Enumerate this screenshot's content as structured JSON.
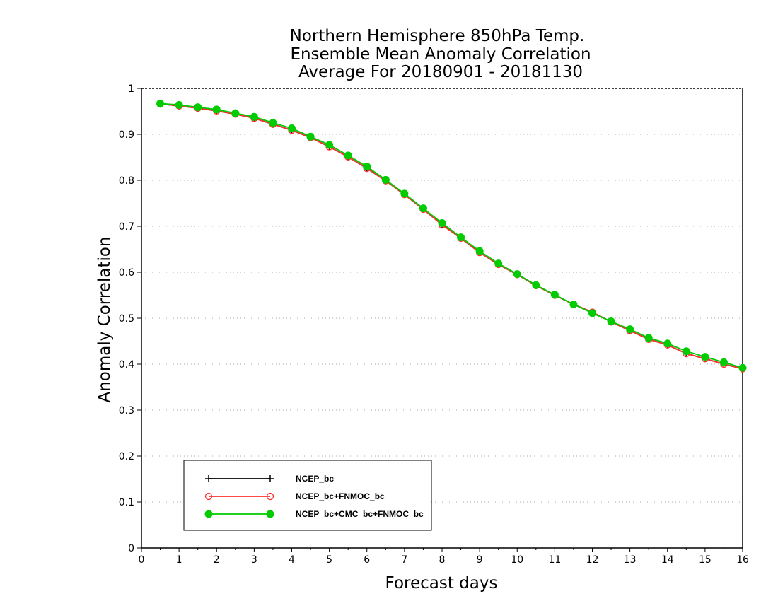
{
  "chart_data": {
    "type": "line",
    "title": [
      "Northern Hemisphere 850hPa Temp.",
      "Ensemble Mean Anomaly Correlation",
      "Average For 20180901 - 20181130"
    ],
    "xlabel": "Forecast days",
    "ylabel": "Anomaly Correlation",
    "xlim": [
      0,
      16
    ],
    "ylim": [
      0,
      1
    ],
    "xticks": [
      "0",
      "1",
      "2",
      "3",
      "4",
      "5",
      "6",
      "7",
      "8",
      "9",
      "10",
      "11",
      "12",
      "13",
      "14",
      "15",
      "16"
    ],
    "yticks": [
      "0",
      "0.1",
      "0.2",
      "0.3",
      "0.4",
      "0.5",
      "0.6",
      "0.7",
      "0.8",
      "0.9",
      "1"
    ],
    "grid": "horizontal dotted",
    "legend_position": "bottom-left",
    "x": [
      0.5,
      1,
      1.5,
      2,
      2.5,
      3,
      3.5,
      4,
      4.5,
      5,
      5.5,
      6,
      6.5,
      7,
      7.5,
      8,
      8.5,
      9,
      9.5,
      10,
      10.5,
      11,
      11.5,
      12,
      12.5,
      13,
      13.5,
      14,
      14.5,
      15,
      15.5,
      16
    ],
    "series": [
      {
        "name": "NCEP_bc",
        "color": "#000000",
        "marker": "plus",
        "values": [
          0.966,
          0.962,
          0.957,
          0.951,
          0.944,
          0.935,
          0.922,
          0.909,
          0.893,
          0.873,
          0.851,
          0.826,
          0.799,
          0.769,
          0.737,
          0.704,
          0.674,
          0.643,
          0.617,
          0.595,
          0.571,
          0.55,
          0.53,
          0.513,
          0.492,
          0.473,
          0.454,
          0.442,
          0.423,
          0.412,
          0.4,
          0.39
        ]
      },
      {
        "name": "NCEP_bc+FNMOC_bc",
        "color": "#ff3030",
        "marker": "open-circle",
        "values": [
          0.966,
          0.962,
          0.957,
          0.951,
          0.944,
          0.935,
          0.922,
          0.909,
          0.893,
          0.873,
          0.851,
          0.826,
          0.799,
          0.769,
          0.737,
          0.703,
          0.674,
          0.643,
          0.617,
          0.595,
          0.571,
          0.55,
          0.53,
          0.513,
          0.492,
          0.473,
          0.454,
          0.442,
          0.423,
          0.412,
          0.4,
          0.39
        ]
      },
      {
        "name": "NCEP_bc+CMC_bc+FNMOC_bc",
        "color": "#00cc00",
        "marker": "filled-circle",
        "values": [
          0.967,
          0.964,
          0.959,
          0.954,
          0.946,
          0.938,
          0.925,
          0.913,
          0.895,
          0.877,
          0.854,
          0.83,
          0.801,
          0.771,
          0.739,
          0.707,
          0.676,
          0.646,
          0.619,
          0.596,
          0.572,
          0.551,
          0.53,
          0.511,
          0.493,
          0.476,
          0.457,
          0.445,
          0.428,
          0.416,
          0.404,
          0.392
        ]
      }
    ]
  }
}
